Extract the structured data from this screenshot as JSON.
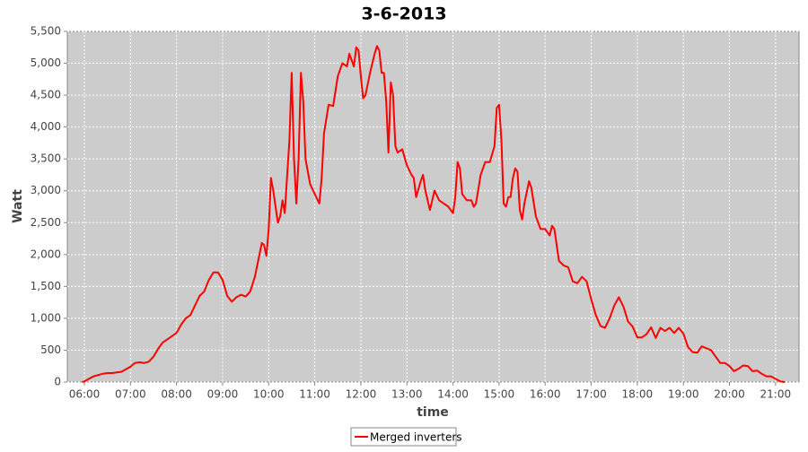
{
  "chart_data": {
    "type": "line",
    "title": "3-6-2013",
    "xlabel": "time",
    "ylabel": "Watt",
    "x": [
      5.95,
      6.0,
      6.1,
      6.2,
      6.3,
      6.4,
      6.5,
      6.6,
      6.7,
      6.8,
      6.9,
      7.0,
      7.1,
      7.2,
      7.3,
      7.4,
      7.5,
      7.6,
      7.7,
      7.8,
      7.9,
      8.0,
      8.1,
      8.2,
      8.3,
      8.4,
      8.5,
      8.6,
      8.7,
      8.8,
      8.9,
      9.0,
      9.1,
      9.2,
      9.3,
      9.4,
      9.5,
      9.6,
      9.7,
      9.8,
      9.85,
      9.9,
      9.95,
      10.0,
      10.05,
      10.1,
      10.2,
      10.25,
      10.3,
      10.35,
      10.45,
      10.5,
      10.55,
      10.6,
      10.65,
      10.7,
      10.75,
      10.8,
      10.9,
      11.0,
      11.1,
      11.15,
      11.2,
      11.3,
      11.4,
      11.5,
      11.6,
      11.7,
      11.75,
      11.85,
      11.9,
      11.95,
      12.0,
      12.05,
      12.1,
      12.2,
      12.3,
      12.35,
      12.4,
      12.45,
      12.5,
      12.55,
      12.6,
      12.65,
      12.7,
      12.75,
      12.8,
      12.9,
      13.0,
      13.1,
      13.15,
      13.2,
      13.3,
      13.35,
      13.4,
      13.5,
      13.6,
      13.7,
      13.8,
      13.9,
      14.0,
      14.05,
      14.1,
      14.15,
      14.2,
      14.3,
      14.4,
      14.45,
      14.5,
      14.6,
      14.7,
      14.8,
      14.9,
      14.95,
      15.0,
      15.05,
      15.1,
      15.15,
      15.2,
      15.25,
      15.3,
      15.35,
      15.4,
      15.45,
      15.5,
      15.55,
      15.65,
      15.7,
      15.8,
      15.9,
      16.0,
      16.1,
      16.15,
      16.2,
      16.3,
      16.4,
      16.5,
      16.6,
      16.7,
      16.8,
      16.9,
      17.0,
      17.1,
      17.2,
      17.3,
      17.4,
      17.5,
      17.6,
      17.7,
      17.8,
      17.9,
      18.0,
      18.1,
      18.2,
      18.3,
      18.4,
      18.5,
      18.6,
      18.7,
      18.8,
      18.9,
      19.0,
      19.1,
      19.2,
      19.3,
      19.4,
      19.5,
      19.6,
      19.7,
      19.8,
      19.9,
      20.0,
      20.1,
      20.2,
      20.3,
      20.4,
      20.5,
      20.6,
      20.7,
      20.8,
      20.9,
      21.0,
      21.1,
      21.2
    ],
    "series": [
      {
        "name": "Merged inverters",
        "color": "#ff0000",
        "values": [
          0,
          10,
          50,
          90,
          110,
          130,
          140,
          140,
          150,
          160,
          200,
          240,
          300,
          310,
          300,
          320,
          400,
          520,
          620,
          670,
          720,
          770,
          900,
          1000,
          1050,
          1200,
          1350,
          1420,
          1600,
          1720,
          1720,
          1600,
          1350,
          1260,
          1330,
          1370,
          1340,
          1420,
          1650,
          2000,
          2180,
          2150,
          1980,
          2400,
          3200,
          3000,
          2500,
          2600,
          2850,
          2650,
          3800,
          4850,
          3500,
          2800,
          3500,
          4850,
          4400,
          3500,
          3100,
          2950,
          2800,
          3200,
          3900,
          4350,
          4330,
          4800,
          5000,
          4950,
          5150,
          4950,
          5250,
          5200,
          4800,
          4450,
          4500,
          4850,
          5150,
          5270,
          5200,
          4850,
          4850,
          4400,
          3600,
          4700,
          4500,
          3700,
          3600,
          3650,
          3400,
          3250,
          3200,
          2900,
          3150,
          3250,
          3000,
          2700,
          3000,
          2850,
          2800,
          2750,
          2650,
          2900,
          3450,
          3350,
          2950,
          2850,
          2850,
          2750,
          2800,
          3250,
          3450,
          3450,
          3700,
          4300,
          4350,
          3800,
          2800,
          2750,
          2900,
          2900,
          3200,
          3350,
          3300,
          2700,
          2550,
          2800,
          3150,
          3050,
          2600,
          2400,
          2400,
          2300,
          2450,
          2400,
          1900,
          1830,
          1800,
          1580,
          1550,
          1650,
          1580,
          1300,
          1050,
          880,
          850,
          1000,
          1200,
          1330,
          1180,
          950,
          870,
          700,
          700,
          750,
          860,
          690,
          850,
          800,
          850,
          770,
          850,
          760,
          550,
          470,
          460,
          560,
          530,
          500,
          400,
          300,
          300,
          250,
          170,
          210,
          260,
          250,
          170,
          180,
          130,
          90,
          90,
          50,
          10,
          0
        ]
      }
    ],
    "xlim": [
      5.63,
      21.51
    ],
    "ylim": [
      0,
      5500
    ],
    "xticks": [
      {
        "value": 6,
        "label": "06:00"
      },
      {
        "value": 7,
        "label": "07:00"
      },
      {
        "value": 8,
        "label": "08:00"
      },
      {
        "value": 9,
        "label": "09:00"
      },
      {
        "value": 10,
        "label": "10:00"
      },
      {
        "value": 11,
        "label": "11:00"
      },
      {
        "value": 12,
        "label": "12:00"
      },
      {
        "value": 13,
        "label": "13:00"
      },
      {
        "value": 14,
        "label": "14:00"
      },
      {
        "value": 15,
        "label": "15:00"
      },
      {
        "value": 16,
        "label": "16:00"
      },
      {
        "value": 17,
        "label": "17:00"
      },
      {
        "value": 18,
        "label": "18:00"
      },
      {
        "value": 19,
        "label": "19:00"
      },
      {
        "value": 20,
        "label": "20:00"
      },
      {
        "value": 21,
        "label": "21:00"
      }
    ],
    "yticks": [
      0,
      500,
      {
        "value": 1000,
        "label": "1,000"
      },
      {
        "value": 1500,
        "label": "1,500"
      },
      {
        "value": 2000,
        "label": "2,000"
      },
      {
        "value": 2500,
        "label": "2,500"
      },
      {
        "value": 3000,
        "label": "3,000"
      },
      {
        "value": 3500,
        "label": "3,500"
      },
      {
        "value": 4000,
        "label": "4,000"
      },
      {
        "value": 4500,
        "label": "4,500"
      },
      {
        "value": 5000,
        "label": "5,000"
      },
      {
        "value": 5500,
        "label": "5,500"
      }
    ],
    "grid": true,
    "legend": "bottom"
  }
}
